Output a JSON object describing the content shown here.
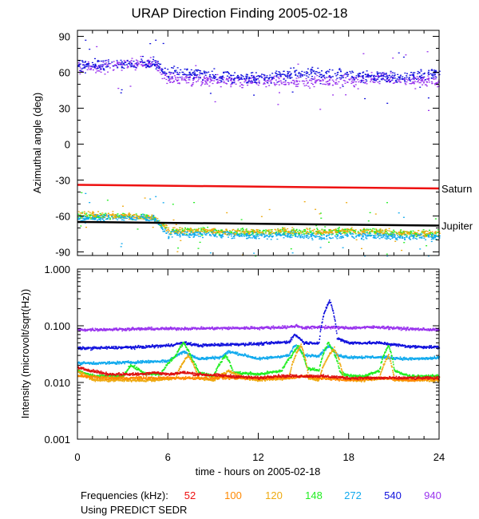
{
  "chart_data": [
    {
      "type": "scatter",
      "title": "URAP Direction Finding  2005-02-18",
      "ylabel": "Azimuthal angle (deg)",
      "xlim": [
        0,
        24
      ],
      "ylim": [
        -93,
        95
      ],
      "yticks": [
        90,
        60,
        30,
        0,
        -30,
        -60,
        -90
      ],
      "reference_lines": [
        {
          "name": "Saturn",
          "color": "#ee1111",
          "x": [
            0,
            24
          ],
          "y": [
            -34,
            -37
          ]
        },
        {
          "name": "Jupiter",
          "color": "#000000",
          "x": [
            0,
            24
          ],
          "y": [
            -65,
            -68
          ]
        }
      ],
      "series": [
        {
          "name": "940",
          "color": "#9933ee",
          "x": [
            0,
            2,
            4,
            5,
            5.5,
            6,
            8,
            10,
            12,
            14,
            16,
            18,
            20,
            22,
            24
          ],
          "y": [
            64,
            66,
            68,
            68,
            62,
            55,
            54,
            53,
            53,
            52,
            53,
            54,
            55,
            53,
            53
          ]
        },
        {
          "name": "540",
          "color": "#1111dd",
          "x": [
            0,
            2,
            4,
            5,
            5.5,
            6,
            8,
            10,
            12,
            14,
            16,
            18,
            20,
            22,
            24
          ],
          "y": [
            66,
            67,
            68,
            68,
            64,
            60,
            59,
            57,
            56,
            58,
            60,
            58,
            57,
            57,
            60
          ]
        },
        {
          "name": "148",
          "color": "#22ee22",
          "x": [
            0,
            2,
            4,
            5,
            5.5,
            6,
            8,
            10,
            12,
            14,
            16,
            18,
            20,
            22,
            24
          ],
          "y": [
            -60,
            -60,
            -60,
            -61,
            -66,
            -72,
            -72,
            -73,
            -73,
            -73,
            -73,
            -72,
            -73,
            -74,
            -74
          ]
        },
        {
          "name": "120",
          "color": "#eeaa11",
          "x": [
            0,
            2,
            4,
            5,
            5.5,
            6,
            8,
            10,
            12,
            14,
            16,
            18,
            20,
            22,
            24
          ],
          "y": [
            -58,
            -59,
            -60,
            -61,
            -66,
            -72,
            -72,
            -73,
            -73,
            -72,
            -73,
            -72,
            -73,
            -74,
            -74
          ]
        },
        {
          "name": "272",
          "color": "#11aaee",
          "x": [
            0,
            2,
            4,
            5,
            5.5,
            6,
            8,
            10,
            12,
            14,
            16,
            18,
            20,
            22,
            24
          ],
          "y": [
            -62,
            -61,
            -61,
            -62,
            -68,
            -75,
            -75,
            -75,
            -76,
            -76,
            -77,
            -76,
            -76,
            -77,
            -77
          ]
        }
      ],
      "annotations": [
        "Saturn",
        "Jupiter"
      ]
    },
    {
      "type": "line",
      "ylabel": "Intensity (microvolt/sqrt(Hz))",
      "xlabel": "time - hours on 2005-02-18",
      "yscale": "log",
      "ylim": [
        0.001,
        1.0
      ],
      "xlim": [
        0,
        24
      ],
      "xticks": [
        0,
        6,
        12,
        18,
        24
      ],
      "yticks": [
        "1.000",
        "0.100",
        "0.010",
        "0.001"
      ],
      "series": [
        {
          "name": "940",
          "color": "#9933ee",
          "x": [
            0,
            4,
            8,
            12,
            14,
            14.5,
            15,
            16,
            18,
            20,
            22,
            24
          ],
          "y": [
            0.085,
            0.088,
            0.09,
            0.092,
            0.095,
            0.1,
            0.092,
            0.095,
            0.092,
            0.095,
            0.088,
            0.085
          ]
        },
        {
          "name": "540",
          "color": "#1111dd",
          "x": [
            0,
            2,
            4,
            6,
            7,
            8,
            10,
            12,
            14,
            14.4,
            15,
            16,
            16.7,
            17.2,
            18,
            20,
            22,
            24
          ],
          "y": [
            0.04,
            0.041,
            0.042,
            0.045,
            0.05,
            0.045,
            0.047,
            0.048,
            0.052,
            0.07,
            0.05,
            0.05,
            0.28,
            0.06,
            0.05,
            0.05,
            0.043,
            0.042
          ]
        },
        {
          "name": "272",
          "color": "#11aaee",
          "x": [
            0,
            2,
            4,
            6,
            7,
            8,
            9.5,
            10,
            12,
            14,
            14.4,
            15,
            16,
            16.7,
            17.2,
            18,
            20,
            22,
            24
          ],
          "y": [
            0.022,
            0.022,
            0.023,
            0.024,
            0.035,
            0.026,
            0.028,
            0.035,
            0.026,
            0.03,
            0.045,
            0.03,
            0.03,
            0.045,
            0.03,
            0.028,
            0.028,
            0.026,
            0.027
          ]
        },
        {
          "name": "148",
          "color": "#22ee22",
          "x": [
            0,
            1,
            3,
            3.5,
            4.5,
            5.5,
            6.5,
            7,
            7.6,
            8,
            9,
            9.8,
            10.3,
            12,
            13.5,
            14.2,
            14.6,
            15.2,
            16,
            16.6,
            17.4,
            18,
            19,
            20,
            20.6,
            21,
            22,
            24
          ],
          "y": [
            0.016,
            0.013,
            0.013,
            0.02,
            0.014,
            0.014,
            0.03,
            0.05,
            0.025,
            0.015,
            0.013,
            0.03,
            0.015,
            0.014,
            0.016,
            0.03,
            0.045,
            0.018,
            0.016,
            0.05,
            0.015,
            0.013,
            0.013,
            0.016,
            0.045,
            0.016,
            0.013,
            0.013
          ]
        },
        {
          "name": "120",
          "color": "#eeaa11",
          "x": [
            0,
            1,
            3,
            5,
            6.5,
            7.3,
            8,
            9,
            10,
            11,
            12,
            14,
            14.8,
            15.3,
            16,
            17,
            17.6,
            18.2,
            19,
            20,
            20.6,
            21,
            22,
            24
          ],
          "y": [
            0.016,
            0.011,
            0.011,
            0.011,
            0.012,
            0.03,
            0.012,
            0.011,
            0.016,
            0.012,
            0.011,
            0.012,
            0.045,
            0.012,
            0.011,
            0.04,
            0.012,
            0.011,
            0.011,
            0.012,
            0.03,
            0.011,
            0.011,
            0.011
          ]
        },
        {
          "name": "100",
          "color": "#ff8800",
          "x": [
            0,
            2,
            4,
            6,
            8,
            10,
            12,
            14,
            15,
            16,
            18,
            20,
            22,
            24
          ],
          "y": [
            0.013,
            0.012,
            0.012,
            0.012,
            0.012,
            0.012,
            0.012,
            0.012,
            0.013,
            0.012,
            0.011,
            0.012,
            0.011,
            0.012
          ]
        },
        {
          "name": "52",
          "color": "#dd1111",
          "x": [
            0,
            1,
            2,
            3,
            4,
            5,
            6,
            7,
            8,
            10,
            12,
            13,
            14,
            16,
            18,
            20,
            22,
            24
          ],
          "y": [
            0.018,
            0.016,
            0.014,
            0.014,
            0.014,
            0.015,
            0.014,
            0.015,
            0.014,
            0.013,
            0.012,
            0.013,
            0.013,
            0.013,
            0.012,
            0.012,
            0.012,
            0.012
          ]
        }
      ]
    }
  ],
  "legend": {
    "prefix": "Frequencies (kHz):",
    "items": [
      {
        "label": "52",
        "color": "#ee1111"
      },
      {
        "label": "100",
        "color": "#ff8800"
      },
      {
        "label": "120",
        "color": "#eeaa11"
      },
      {
        "label": "148",
        "color": "#22ee22"
      },
      {
        "label": "272",
        "color": "#11aaee"
      },
      {
        "label": "540",
        "color": "#1111dd"
      },
      {
        "label": "940",
        "color": "#9933ee"
      }
    ]
  },
  "footer_note": "Using PREDICT SEDR"
}
